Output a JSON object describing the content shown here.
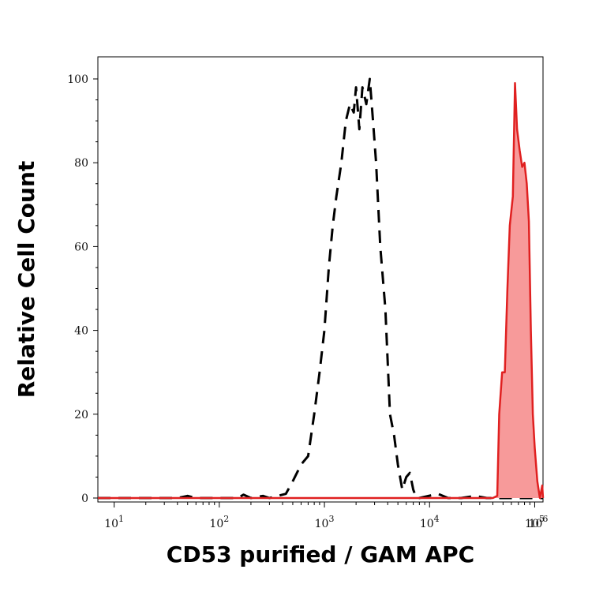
{
  "chart_data": {
    "type": "area",
    "xlabel": "CD53 purified / GAM APC",
    "ylabel": "Relative Cell Count",
    "x_scale": "log",
    "xlim": [
      7,
      120000
    ],
    "ylim": [
      0,
      105
    ],
    "x_ticks": [
      {
        "base": "10",
        "exp": "1",
        "value": 10
      },
      {
        "base": "10",
        "exp": "2",
        "value": 100
      },
      {
        "base": "10",
        "exp": "3",
        "value": 1000
      },
      {
        "base": "10",
        "exp": "4",
        "value": 10000
      },
      {
        "base": "10",
        "exp": "5",
        "value": 100000
      },
      {
        "base": "10",
        "exp": "6",
        "value": 1000000
      }
    ],
    "y_ticks": [
      "0",
      "20",
      "40",
      "60",
      "80",
      "100"
    ],
    "y_tick_values": [
      0,
      20,
      40,
      60,
      80,
      100
    ],
    "grid": false,
    "series": [
      {
        "style": "dashed-outline",
        "color": "#000000",
        "points": [
          [
            7,
            0
          ],
          [
            40,
            0
          ],
          [
            50,
            0.5
          ],
          [
            60,
            0
          ],
          [
            150,
            0
          ],
          [
            170,
            0.8
          ],
          [
            200,
            0
          ],
          [
            260,
            0.5
          ],
          [
            300,
            0
          ],
          [
            430,
            1
          ],
          [
            500,
            4
          ],
          [
            600,
            8
          ],
          [
            700,
            10
          ],
          [
            800,
            20
          ],
          [
            900,
            30
          ],
          [
            1000,
            40
          ],
          [
            1100,
            55
          ],
          [
            1200,
            65
          ],
          [
            1300,
            72
          ],
          [
            1450,
            80
          ],
          [
            1600,
            90
          ],
          [
            1750,
            94
          ],
          [
            1900,
            92
          ],
          [
            2000,
            98
          ],
          [
            2150,
            88
          ],
          [
            2300,
            98
          ],
          [
            2500,
            94
          ],
          [
            2700,
            100
          ],
          [
            2900,
            90
          ],
          [
            3100,
            80
          ],
          [
            3400,
            60
          ],
          [
            3800,
            45
          ],
          [
            4200,
            20
          ],
          [
            4600,
            15
          ],
          [
            5000,
            8
          ],
          [
            5500,
            2
          ],
          [
            6000,
            5
          ],
          [
            6500,
            6
          ],
          [
            7000,
            2
          ],
          [
            7500,
            0
          ],
          [
            8000,
            0
          ],
          [
            12000,
            1
          ],
          [
            15000,
            0
          ],
          [
            20000,
            0
          ],
          [
            27000,
            0.5
          ],
          [
            35000,
            0
          ],
          [
            120000,
            0
          ]
        ]
      },
      {
        "style": "filled",
        "color": "#e02020",
        "fill": "#f79a9a",
        "points": [
          [
            7,
            0
          ],
          [
            40000,
            0
          ],
          [
            44000,
            0.5
          ],
          [
            46000,
            20
          ],
          [
            49000,
            30
          ],
          [
            52000,
            30
          ],
          [
            55000,
            50
          ],
          [
            58000,
            65
          ],
          [
            62000,
            72
          ],
          [
            65000,
            99
          ],
          [
            68000,
            88
          ],
          [
            72000,
            83
          ],
          [
            76000,
            79
          ],
          [
            80000,
            80
          ],
          [
            84000,
            75
          ],
          [
            88000,
            66
          ],
          [
            92000,
            40
          ],
          [
            96000,
            20
          ],
          [
            100000,
            12
          ],
          [
            106000,
            4
          ],
          [
            112000,
            0
          ],
          [
            118000,
            3
          ],
          [
            120000,
            0
          ]
        ]
      }
    ]
  }
}
